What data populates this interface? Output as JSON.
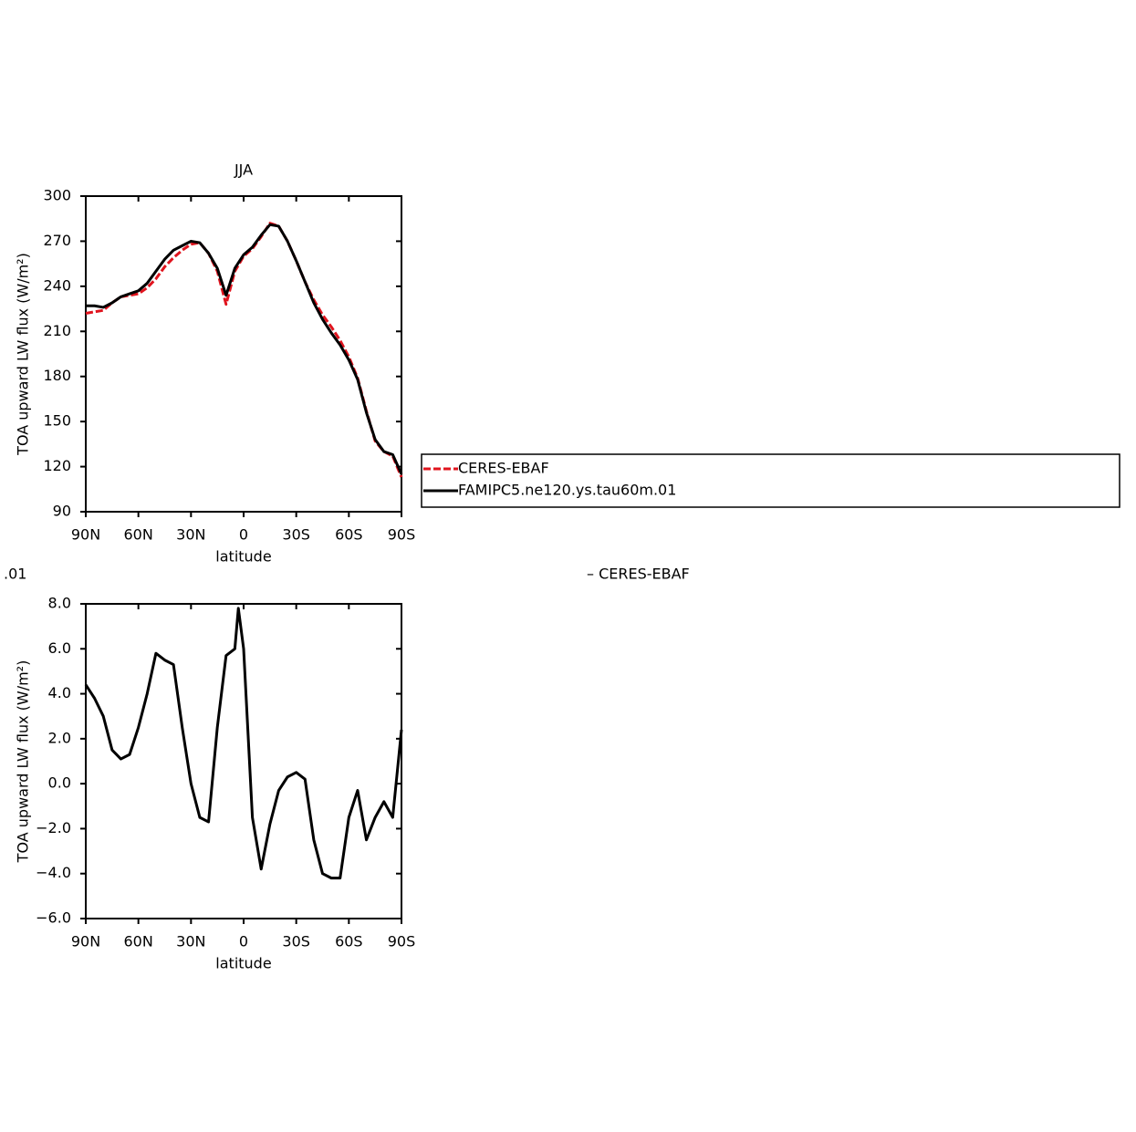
{
  "chart_data": [
    {
      "type": "line",
      "title": "JJA",
      "x_label": "latitude",
      "y_label": "TOA upward LW flux (W/m²)",
      "x": [
        90,
        85,
        80,
        75,
        70,
        65,
        60,
        55,
        50,
        45,
        40,
        35,
        30,
        25,
        20,
        15,
        10,
        5,
        0,
        -5,
        -10,
        -15,
        -20,
        -25,
        -30,
        -35,
        -40,
        -45,
        -50,
        -55,
        -60,
        -65,
        -70,
        -75,
        -80,
        -85,
        -90
      ],
      "series": [
        {
          "name": "CERES-EBAF",
          "color": "#e0141e",
          "dash": true,
          "values": [
            222,
            223,
            224,
            229,
            233,
            234,
            235,
            239,
            245,
            253,
            259,
            264,
            268,
            269,
            262,
            250,
            228,
            250,
            260,
            265,
            273,
            282,
            280,
            270,
            257,
            243,
            231,
            221,
            213,
            204,
            193,
            179,
            157,
            137,
            130,
            127,
            113
          ]
        },
        {
          "name": "FAMIPC5.ne120.ys.tau60m.01",
          "color": "#000000",
          "dash": false,
          "values": [
            227,
            227,
            226,
            229,
            233,
            235,
            237,
            242,
            250,
            258,
            264,
            267,
            270,
            269,
            262,
            252,
            234,
            252,
            261,
            266,
            274,
            281,
            280,
            270,
            257,
            243,
            229,
            218,
            209,
            201,
            191,
            178,
            156,
            138,
            130,
            128,
            115
          ]
        }
      ],
      "xlim": [
        90,
        -90
      ],
      "xticks": [
        {
          "value": 90,
          "label": "90N"
        },
        {
          "value": 60,
          "label": "60N"
        },
        {
          "value": 30,
          "label": "30N"
        },
        0,
        {
          "value": -30,
          "label": "30S"
        },
        {
          "value": -60,
          "label": "60S"
        },
        {
          "value": -90,
          "label": "90S"
        }
      ],
      "ylim": [
        90,
        300
      ],
      "yticks": [
        90,
        120,
        150,
        180,
        210,
        240,
        270,
        300
      ],
      "legend": "right"
    },
    {
      "type": "line",
      "title_fragments": [
        ".01",
        "– CERES-EBAF"
      ],
      "x_label": "latitude",
      "y_label": "TOA upward LW flux (W/m²)",
      "x": [
        90,
        85,
        80,
        75,
        70,
        65,
        60,
        55,
        50,
        45,
        40,
        35,
        30,
        25,
        20,
        15,
        10,
        5,
        3,
        0,
        -5,
        -10,
        -15,
        -20,
        -25,
        -30,
        -35,
        -40,
        -45,
        -50,
        -55,
        -60,
        -65,
        -70,
        -75,
        -80,
        -85,
        -90
      ],
      "series": [
        {
          "color": "#000000",
          "dash": false,
          "values": [
            4.4,
            3.8,
            3.0,
            1.5,
            1.1,
            1.3,
            2.5,
            4.0,
            5.8,
            5.5,
            5.3,
            2.5,
            0.0,
            -1.5,
            -1.7,
            2.5,
            5.7,
            6.0,
            7.8,
            6.0,
            -1.5,
            -3.8,
            -1.8,
            -0.3,
            0.3,
            0.5,
            0.2,
            -2.5,
            -4.0,
            -4.2,
            -4.2,
            -1.5,
            -0.3,
            -2.5,
            -1.5,
            -0.8,
            -1.5,
            2.4
          ]
        }
      ],
      "xlim": [
        90,
        -90
      ],
      "xticks": [
        {
          "value": 90,
          "label": "90N"
        },
        {
          "value": 60,
          "label": "60N"
        },
        {
          "value": 30,
          "label": "30N"
        },
        0,
        {
          "value": -30,
          "label": "30S"
        },
        {
          "value": -60,
          "label": "60S"
        },
        {
          "value": -90,
          "label": "90S"
        }
      ],
      "ylim": [
        -6,
        8
      ],
      "yticks": [
        {
          "value": -6,
          "label": "−6.0"
        },
        {
          "value": -4,
          "label": "−4.0"
        },
        {
          "value": -2,
          "label": "−2.0"
        },
        {
          "value": 0,
          "label": "0.0"
        },
        {
          "value": 2,
          "label": "2.0"
        },
        {
          "value": 4,
          "label": "4.0"
        },
        {
          "value": 6,
          "label": "6.0"
        },
        {
          "value": 8,
          "label": "8.0"
        }
      ]
    }
  ]
}
